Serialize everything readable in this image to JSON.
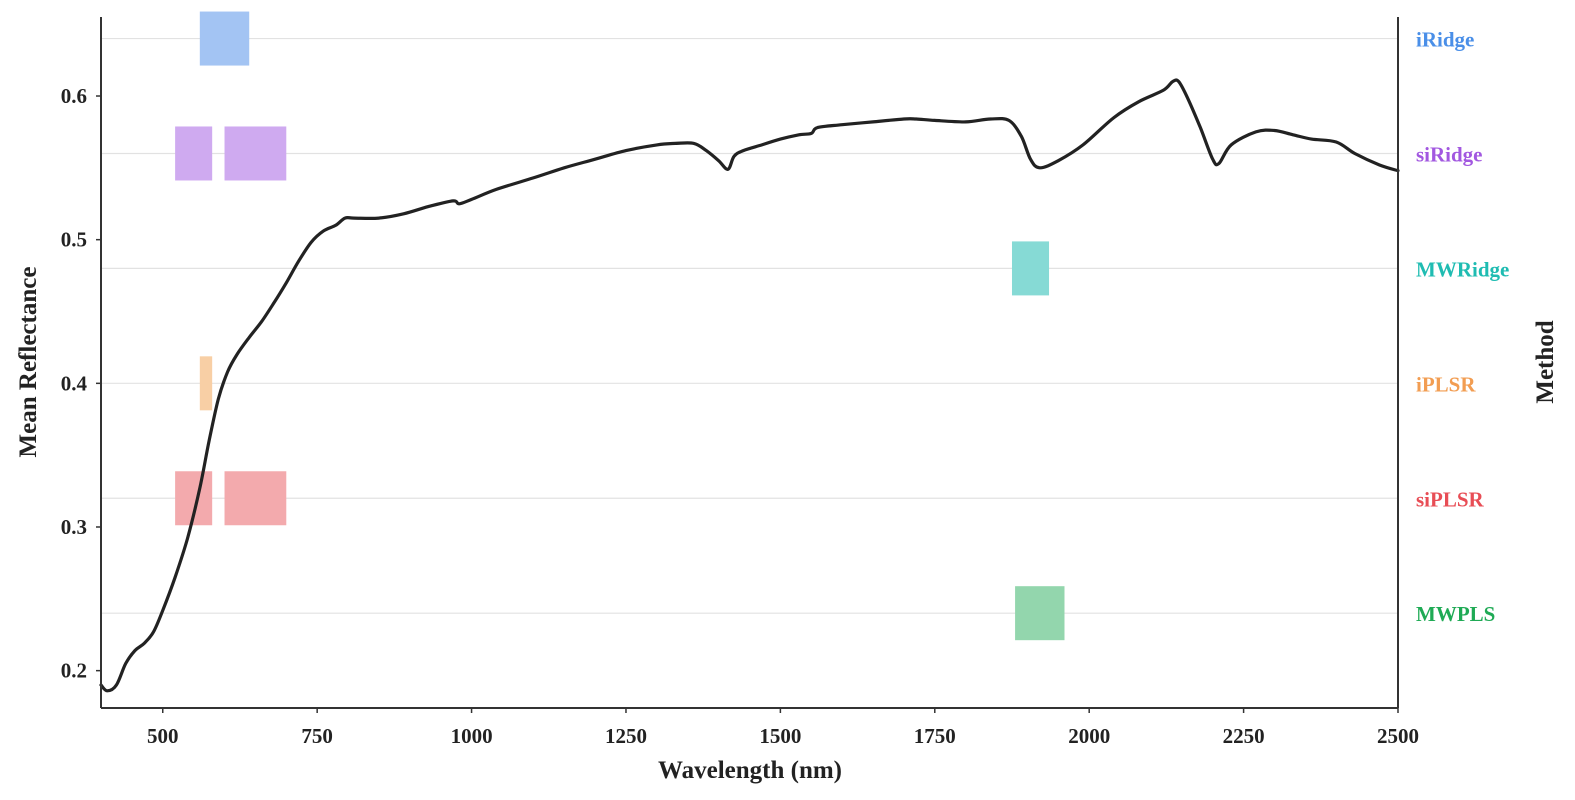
{
  "chart_data": {
    "type": "line",
    "xlabel": "Wavelength (nm)",
    "ylabel": "Mean Reflectance",
    "right_axis_label": "Method",
    "xlim": [
      400,
      2500
    ],
    "ylim": [
      0.174,
      0.655
    ],
    "x_ticks": [
      500,
      750,
      1000,
      1250,
      1500,
      1750,
      2000,
      2250,
      2500
    ],
    "y_ticks": [
      0.2,
      0.3,
      0.4,
      0.5,
      0.6
    ],
    "grid": "horizontal lines at method rows",
    "series": [
      {
        "color": "#222222",
        "points": [
          [
            400,
            0.19
          ],
          [
            410,
            0.186
          ],
          [
            425,
            0.19
          ],
          [
            440,
            0.205
          ],
          [
            455,
            0.214
          ],
          [
            470,
            0.219
          ],
          [
            485,
            0.227
          ],
          [
            500,
            0.242
          ],
          [
            520,
            0.265
          ],
          [
            540,
            0.292
          ],
          [
            560,
            0.327
          ],
          [
            575,
            0.36
          ],
          [
            590,
            0.389
          ],
          [
            605,
            0.408
          ],
          [
            620,
            0.42
          ],
          [
            640,
            0.432
          ],
          [
            660,
            0.443
          ],
          [
            680,
            0.456
          ],
          [
            700,
            0.47
          ],
          [
            720,
            0.485
          ],
          [
            740,
            0.498
          ],
          [
            760,
            0.506
          ],
          [
            780,
            0.51
          ],
          [
            795,
            0.515
          ],
          [
            810,
            0.515
          ],
          [
            850,
            0.515
          ],
          [
            890,
            0.518
          ],
          [
            930,
            0.523
          ],
          [
            970,
            0.527
          ],
          [
            980,
            0.525
          ],
          [
            1000,
            0.528
          ],
          [
            1040,
            0.535
          ],
          [
            1100,
            0.543
          ],
          [
            1150,
            0.55
          ],
          [
            1200,
            0.556
          ],
          [
            1250,
            0.562
          ],
          [
            1300,
            0.566
          ],
          [
            1330,
            0.567
          ],
          [
            1360,
            0.567
          ],
          [
            1380,
            0.562
          ],
          [
            1400,
            0.555
          ],
          [
            1415,
            0.549
          ],
          [
            1425,
            0.558
          ],
          [
            1440,
            0.562
          ],
          [
            1470,
            0.566
          ],
          [
            1500,
            0.57
          ],
          [
            1530,
            0.573
          ],
          [
            1550,
            0.574
          ],
          [
            1560,
            0.578
          ],
          [
            1600,
            0.58
          ],
          [
            1650,
            0.582
          ],
          [
            1700,
            0.584
          ],
          [
            1720,
            0.584
          ],
          [
            1750,
            0.583
          ],
          [
            1800,
            0.582
          ],
          [
            1840,
            0.584
          ],
          [
            1870,
            0.583
          ],
          [
            1890,
            0.572
          ],
          [
            1905,
            0.556
          ],
          [
            1920,
            0.55
          ],
          [
            1950,
            0.555
          ],
          [
            1990,
            0.566
          ],
          [
            2040,
            0.585
          ],
          [
            2080,
            0.596
          ],
          [
            2120,
            0.604
          ],
          [
            2135,
            0.61
          ],
          [
            2145,
            0.61
          ],
          [
            2160,
            0.598
          ],
          [
            2180,
            0.578
          ],
          [
            2200,
            0.556
          ],
          [
            2210,
            0.553
          ],
          [
            2230,
            0.566
          ],
          [
            2270,
            0.575
          ],
          [
            2300,
            0.576
          ],
          [
            2330,
            0.573
          ],
          [
            2360,
            0.57
          ],
          [
            2400,
            0.568
          ],
          [
            2430,
            0.56
          ],
          [
            2470,
            0.552
          ],
          [
            2500,
            0.548
          ]
        ]
      }
    ],
    "methods": [
      {
        "name": "iRidge",
        "color": "#4a8fe8",
        "fill": "#a3c4f3",
        "y": 0.64,
        "bands": [
          [
            560,
            640
          ]
        ]
      },
      {
        "name": "siRidge",
        "color": "#a258e0",
        "fill": "#cfaaf0",
        "y": 0.56,
        "bands": [
          [
            520,
            580
          ],
          [
            600,
            700
          ]
        ]
      },
      {
        "name": "MWRidge",
        "color": "#1fbcb2",
        "fill": "#86dad5",
        "y": 0.48,
        "bands": [
          [
            1875,
            1935
          ]
        ]
      },
      {
        "name": "iPLSR",
        "color": "#f29d52",
        "fill": "#f8cfa5",
        "y": 0.4,
        "bands": [
          [
            560,
            580
          ]
        ]
      },
      {
        "name": "siPLSR",
        "color": "#e84d55",
        "fill": "#f3aaad",
        "y": 0.32,
        "bands": [
          [
            520,
            580
          ],
          [
            600,
            700
          ]
        ]
      },
      {
        "name": "MWPLS",
        "color": "#1faa55",
        "fill": "#93d6ad",
        "y": 0.24,
        "bands": [
          [
            1880,
            1960
          ]
        ]
      }
    ]
  }
}
